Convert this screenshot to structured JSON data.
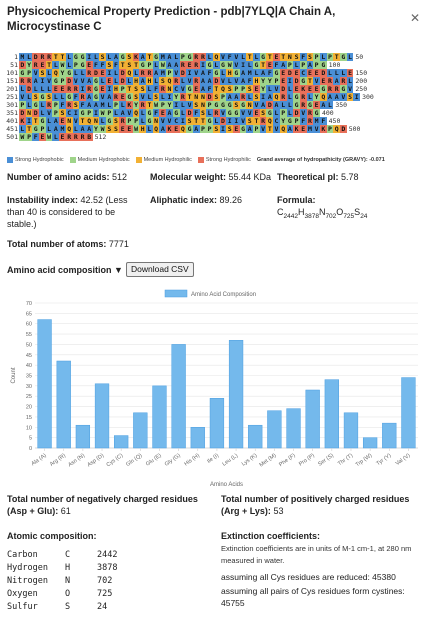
{
  "dialog": {
    "title": "Physicochemical Property Prediction - pdb|7YLQ|A Chain A, Microcystinase C"
  },
  "sequence": {
    "lines": [
      {
        "start": "1",
        "end": "50",
        "residues": "MLDRRTTLGGILSLAGSKATGMALPGRRLQVFVLTLGTETNSFSPLPTGL"
      },
      {
        "start": "51",
        "end": "100",
        "residues": "DYRETLWLPGEFFSFTSTGPLWAARERIGLGWVILGTEFAPLPAPG"
      },
      {
        "start": "101",
        "end": "150",
        "residues": "GPVSLQYGLLRDEILDQLRRAMPVDIVAFGLHGAMLAFGEDECEEDLLLE"
      },
      {
        "start": "151",
        "end": "200",
        "residues": "RRAIVGPDVVAGLELDLHAHLSQRLVRAADVLVAFHYYPEIDGTVERARL"
      },
      {
        "start": "201",
        "end": "250",
        "residues": "LDLLLEERRIRGEIHPTSSLFRNCVGEAFTQSPPSEYLVDLEKEEGRRGV"
      },
      {
        "start": "251",
        "end": "300",
        "residues": "VLSGSLLGFRAGVAREGSVLSLIYRTNNDSPAARLSIAQRLGRLYQAAVSI"
      },
      {
        "start": "301",
        "end": "350",
        "residues": "PLGLRPFRSFAAMLPLKYRTWPYILVSNPGGGSGNVADALLGRGEAL"
      },
      {
        "start": "351",
        "end": "400",
        "residues": "DNDLVPSCIGPIWPLAVQLGFEAGLDFSLRVGGVVESGLPLDVRG"
      },
      {
        "start": "401",
        "end": "450",
        "residues": "KITGLAENVTQNLGSRPPLGNVVCISTTGLDIIVSTRQCYGPFRMF"
      },
      {
        "start": "451",
        "end": "500",
        "residues": "LTGPLAMQLAAYWSSEEWHLQAKEQGAPPSISEGAPVTVQAKEMVKPQD"
      },
      {
        "start": "501",
        "end": "512",
        "residues": "WPFEWLERRRB"
      }
    ],
    "legend": {
      "strong_hydrophobic": "Strong Hydrophobic",
      "medium_hydrophobic": "Medium Hydrophobic",
      "medium_hydrophilic": "Medium Hydrophilic",
      "strong_hydrophilic": "Strong Hydrophilic",
      "gravy": "Grand average of hydropathicity (GRAVY): -0.071"
    },
    "colors": {
      "strong_hydrophobic": "#4a8fd6",
      "medium_hydrophobic": "#9fd48a",
      "medium_hydrophilic": "#f2b134",
      "strong_hydrophilic": "#e8705a"
    }
  },
  "stats": {
    "num_amino_acids_label": "Number of amino acids:",
    "num_amino_acids": "512",
    "molecular_weight_label": "Molecular weight:",
    "molecular_weight": "55.44 KDa",
    "pi_label": "Theoretical pI:",
    "pi": "5.78",
    "instability_label": "Instability index:",
    "instability_line1": "42.52  (Less",
    "instability_line2": "than 40 is considered to be",
    "instability_line3": "stable.)",
    "aliphatic_label": "Aliphatic index:",
    "aliphatic": "89.26",
    "formula_label": "Formula:",
    "formula_parts": [
      {
        "el": "C",
        "n": "2442"
      },
      {
        "el": "H",
        "n": "3878"
      },
      {
        "el": "N",
        "n": "702"
      },
      {
        "el": "O",
        "n": "725"
      },
      {
        "el": "S",
        "n": "24"
      }
    ],
    "total_atoms_label": "Total number of atoms:",
    "total_atoms": "7771",
    "aa_comp_label": "Amino acid composition",
    "download_csv": "Download CSV"
  },
  "chart_data": {
    "type": "bar",
    "title": "",
    "xlabel": "Amino Acids",
    "ylabel": "Count",
    "ylim": [
      0,
      70
    ],
    "yticks": [
      0,
      5,
      10,
      15,
      20,
      25,
      30,
      35,
      40,
      45,
      50,
      55,
      60,
      65,
      70
    ],
    "legend_position": "top-center",
    "series": [
      {
        "name": "Amino Acid Composition",
        "values": [
          62,
          42,
          11,
          31,
          6,
          17,
          30,
          50,
          10,
          24,
          52,
          11,
          18,
          19,
          28,
          33,
          17,
          5,
          12,
          34
        ]
      }
    ],
    "categories": [
      "Ala (A)",
      "Arg (R)",
      "Asn (N)",
      "Asp (D)",
      "Cys (C)",
      "Gln (Q)",
      "Glu (E)",
      "Gly (G)",
      "His (H)",
      "Ile (I)",
      "Leu (L)",
      "Lys (K)",
      "Met (M)",
      "Phe (F)",
      "Pro (P)",
      "Ser (S)",
      "Thr (T)",
      "Trp (W)",
      "Tyr (Y)",
      "Val (V)"
    ],
    "grid": true,
    "colors": {
      "bar": "#74b9ec",
      "bar_stroke": "#4a9ee0"
    }
  },
  "charges": {
    "negative_label": "Total number of negatively charged residues (Asp + Glu):",
    "negative": "61",
    "positive_label": "Total number of positively charged residues (Arg + Lys):",
    "positive": "53"
  },
  "atomic": {
    "title": "Atomic composition:",
    "rows": [
      {
        "name": "Carbon",
        "sym": "C",
        "count": "2442"
      },
      {
        "name": "Hydrogen",
        "sym": "H",
        "count": "3878"
      },
      {
        "name": "Nitrogen",
        "sym": "N",
        "count": "702"
      },
      {
        "name": "Oxygen",
        "sym": "O",
        "count": "725"
      },
      {
        "name": "Sulfur",
        "sym": "S",
        "count": "24"
      }
    ]
  },
  "extinction": {
    "title": "Extinction coefficients:",
    "note": "Extinction coefficients are in units of M-1 cm-1, at 280 nm measured in water.",
    "reduced": "assuming all Cys residues are reduced: 45380",
    "cystines": "assuming all pairs of Cys residues form cystines: 45755"
  }
}
